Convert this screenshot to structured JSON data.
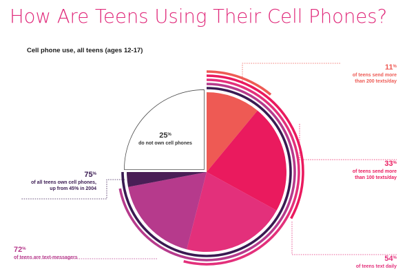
{
  "title": "How Are Teens Using Their Cell Phones?",
  "subtitle": "Cell phone use, all teens (ages 12-17)",
  "colors": {
    "title": "#e0297a",
    "subtitle": "#1a1a1a",
    "segment_11": "#ee5a54",
    "segment_22": "#ea1a5e",
    "segment_21": "#e3307b",
    "segment_18": "#b63a8c",
    "segment_3": "#4a1e56",
    "segment_25_stroke": "#4a4a4a",
    "arc_75": "#3a1a52",
    "arc_72": "#b63a8c",
    "arc_54": "#e3307b",
    "arc_33": "#ea1a5e",
    "arc_11": "#ee5a54",
    "label_11": "#ee5a54",
    "label_33": "#ea1a5e",
    "label_54": "#e3307b",
    "label_72": "#b63a8c",
    "label_75": "#3a1a52",
    "label_25": "#333333"
  },
  "chart_data": {
    "type": "pie",
    "title": "How Are Teens Using Their Cell Phones?",
    "subtitle": "Cell phone use, all teens (ages 12-17)",
    "unit": "%",
    "slices": [
      {
        "value": 11,
        "color": "#ee5a54"
      },
      {
        "value": 22,
        "color": "#ea1a5e"
      },
      {
        "value": 21,
        "color": "#e3307b"
      },
      {
        "value": 18,
        "color": "#b63a8c"
      },
      {
        "value": 3,
        "color": "#4a1e56"
      },
      {
        "value": 25,
        "color": "#ffffff",
        "label": "do not own cell phones",
        "exploded": true
      }
    ],
    "cumulative_arcs": [
      {
        "value": 75,
        "color": "#3a1a52"
      },
      {
        "value": 72,
        "color": "#b63a8c"
      },
      {
        "value": 54,
        "color": "#e3307b"
      },
      {
        "value": 33,
        "color": "#ea1a5e"
      },
      {
        "value": 11,
        "color": "#ee5a54"
      }
    ],
    "annotations": [
      {
        "key": "a11",
        "number": "11",
        "unit": "%",
        "lines": [
          "of teens send more",
          "than 200 texts/day"
        ],
        "color": "#ee5a54"
      },
      {
        "key": "a33",
        "number": "33",
        "unit": "%",
        "lines": [
          "of teens send more",
          "than 100 texts/day"
        ],
        "color": "#ea1a5e"
      },
      {
        "key": "a54",
        "number": "54",
        "unit": "%",
        "lines": [
          "of teens text daily"
        ],
        "color": "#e3307b"
      },
      {
        "key": "a72",
        "number": "72",
        "unit": "%",
        "lines": [
          "of teens are text-messagers"
        ],
        "color": "#b63a8c"
      },
      {
        "key": "a75",
        "number": "75",
        "unit": "%",
        "lines": [
          "of all teens  own cell phones,",
          "up from 45% in 2004"
        ],
        "color": "#3a1a52"
      },
      {
        "key": "a25",
        "number": "25",
        "unit": "%",
        "lines": [
          "do not own cell phones"
        ],
        "color": "#333333"
      }
    ]
  }
}
